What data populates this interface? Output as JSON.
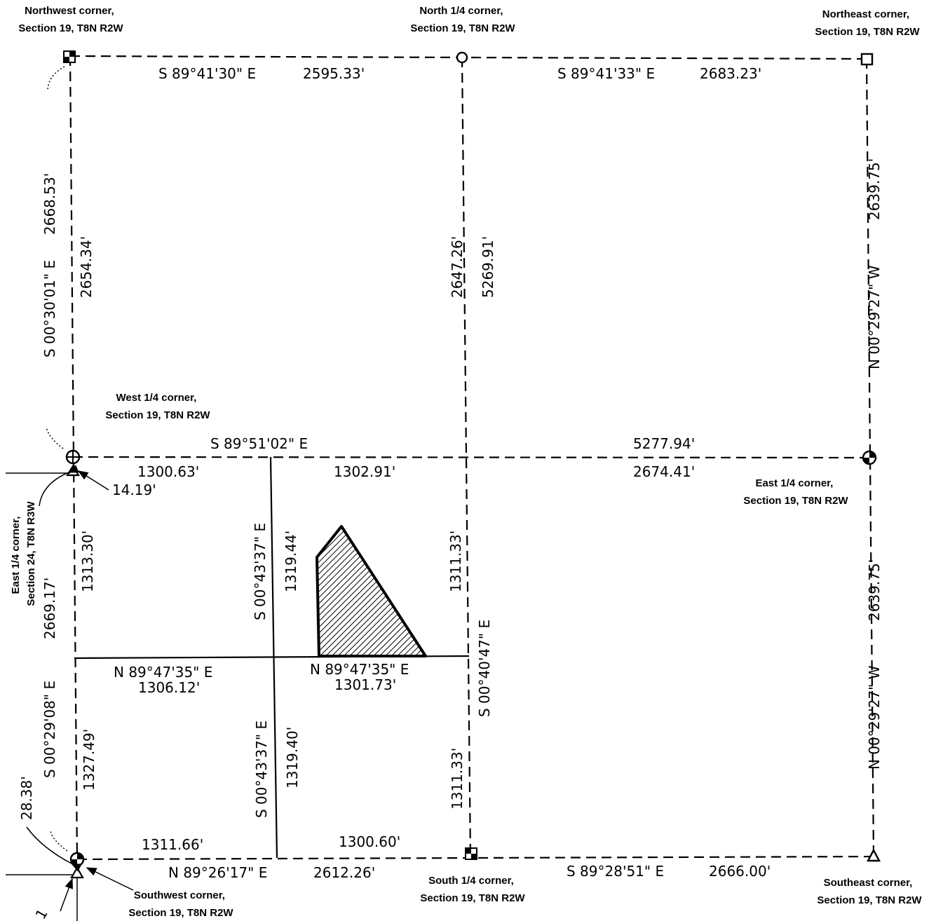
{
  "corners": {
    "northwest": [
      "Northwest corner,",
      "Section 19, T8N R2W"
    ],
    "north_quarter": [
      "North 1/4 corner,",
      "Section 19, T8N R2W"
    ],
    "northeast": [
      "Northeast corner,",
      "Section 19, T8N R2W"
    ],
    "west_quarter": [
      "West 1/4 corner,",
      "Section 19, T8N R2W"
    ],
    "east_quarter": [
      "East 1/4 corner,",
      "Section 19, T8N R2W"
    ],
    "east_quarter_sec24": [
      "East 1/4 corner,",
      "Section 24, T8N R3W"
    ],
    "southwest": [
      "Southwest corner,",
      "Section 19, T8N R2W"
    ],
    "south_quarter": [
      "South 1/4 corner,",
      "Section 19, T8N R2W"
    ],
    "southeast": [
      "Southeast corner,",
      "Section 19, T8N R2W"
    ]
  },
  "bearings": {
    "north_west_half": "S 89°41'30\" E",
    "north_east_half": "S 89°41'33\" E",
    "center_line": "S 89°51'02\" E",
    "mid_west": "N 89°47'35\" E",
    "mid_center": "N 89°47'35\" E",
    "south_west_half": "N 89°26'17\" E",
    "south_east_half": "S 89°28'51\" E",
    "west_upper": "S 00°30'01\" E",
    "west_lower": "S 00°29'08\" E",
    "east_upper": "N 00°29'27\" W",
    "east_lower": "N 00°29'27\" W",
    "inner_upper": "S 00°43'37\" E",
    "inner_lower": "S 00°43'37\" E",
    "center_vertical": "S 00°40'47\" E"
  },
  "distances": {
    "north_west_half": "2595.33'",
    "north_east_half": "2683.23'",
    "center_total": "5277.94'",
    "center_east": "2674.41'",
    "center_w1": "1300.63'",
    "center_w2": "1302.91'",
    "offset_west_quarter": "14.19'",
    "mid_west": "1306.12'",
    "mid_center": "1301.73'",
    "south_w1": "1311.66'",
    "south_w2": "1300.60'",
    "south_west_half": "2612.26'",
    "south_east_half": "2666.00'",
    "west_upper_total": "2668.53'",
    "west_upper_inner": "2654.34'",
    "west_lower_total": "2669.17'",
    "west_lower_upper": "1313.30'",
    "west_lower_lower": "1327.49'",
    "offset_southwest": "28.38'",
    "inner_upper": "1319.44'",
    "inner_lower": "1319.40'",
    "center_vertical_upper": "2647.26'",
    "center_vertical_total": "5269.91'",
    "center_vertical_q1": "1311.33'",
    "center_vertical_q2": "1311.33'",
    "east_upper": "2639.75'",
    "east_lower": "2639.75'"
  },
  "partial_label": "1"
}
